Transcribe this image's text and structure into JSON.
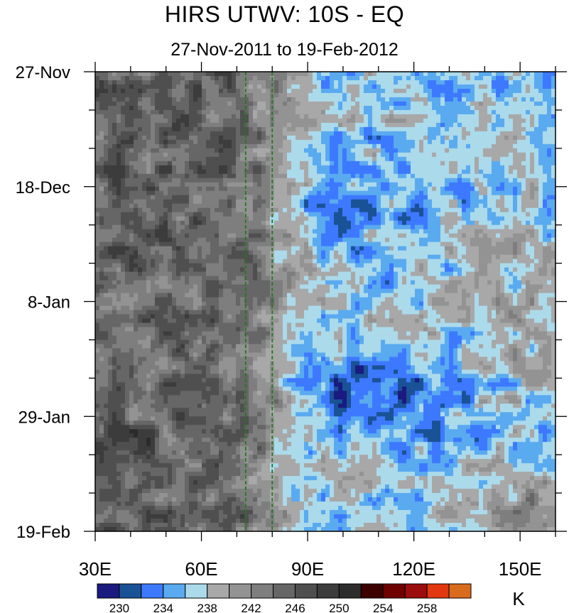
{
  "title": "HIRS UTWV: 10S - EQ",
  "subtitle": "27-Nov-2011 to 19-Feb-2012",
  "chart_data": {
    "type": "heatmap",
    "title": "HIRS UTWV: 10S - EQ",
    "subtitle": "27-Nov-2011 to 19-Feb-2012",
    "x_axis": {
      "range": [
        30,
        160
      ],
      "ticks": [
        30,
        60,
        90,
        120,
        150
      ],
      "tick_labels": [
        "30E",
        "60E",
        "90E",
        "120E",
        "150E"
      ]
    },
    "y_axis": {
      "range": [
        "27-Nov-2011",
        "19-Feb-2012"
      ],
      "reversed": true,
      "ticks": [
        "27-Nov",
        "18-Dec",
        "8-Jan",
        "29-Jan",
        "19-Feb"
      ]
    },
    "reference_lines_x": [
      72.5,
      80
    ],
    "reference_line_color": "#1f7a1f",
    "colorbar": {
      "units": "K",
      "labels": [
        "230",
        "234",
        "238",
        "242",
        "246",
        "250",
        "254",
        "258"
      ],
      "levels": [
        228,
        230,
        232,
        234,
        236,
        238,
        240,
        242,
        244,
        246,
        248,
        250,
        252,
        254,
        256,
        258,
        260
      ],
      "colors": [
        "#1a1a80",
        "#1a5296",
        "#3d79ff",
        "#5aaaf0",
        "#abdaeb",
        "#a8a8a8",
        "#939393",
        "#7e7e7e",
        "#666666",
        "#4f4f4f",
        "#3c3c3c",
        "#2c2c2c",
        "#3d0000",
        "#6e0000",
        "#9c0d0d",
        "#e2380f",
        "#d96b1d"
      ]
    },
    "description": "Hovmoller of upper tropospheric water vapor brightness temperature; dry (dark gray) regions west of ~75E, moist (blue) band over 80E-150E with eastward-propagating moist episode in mid-to-late January."
  }
}
